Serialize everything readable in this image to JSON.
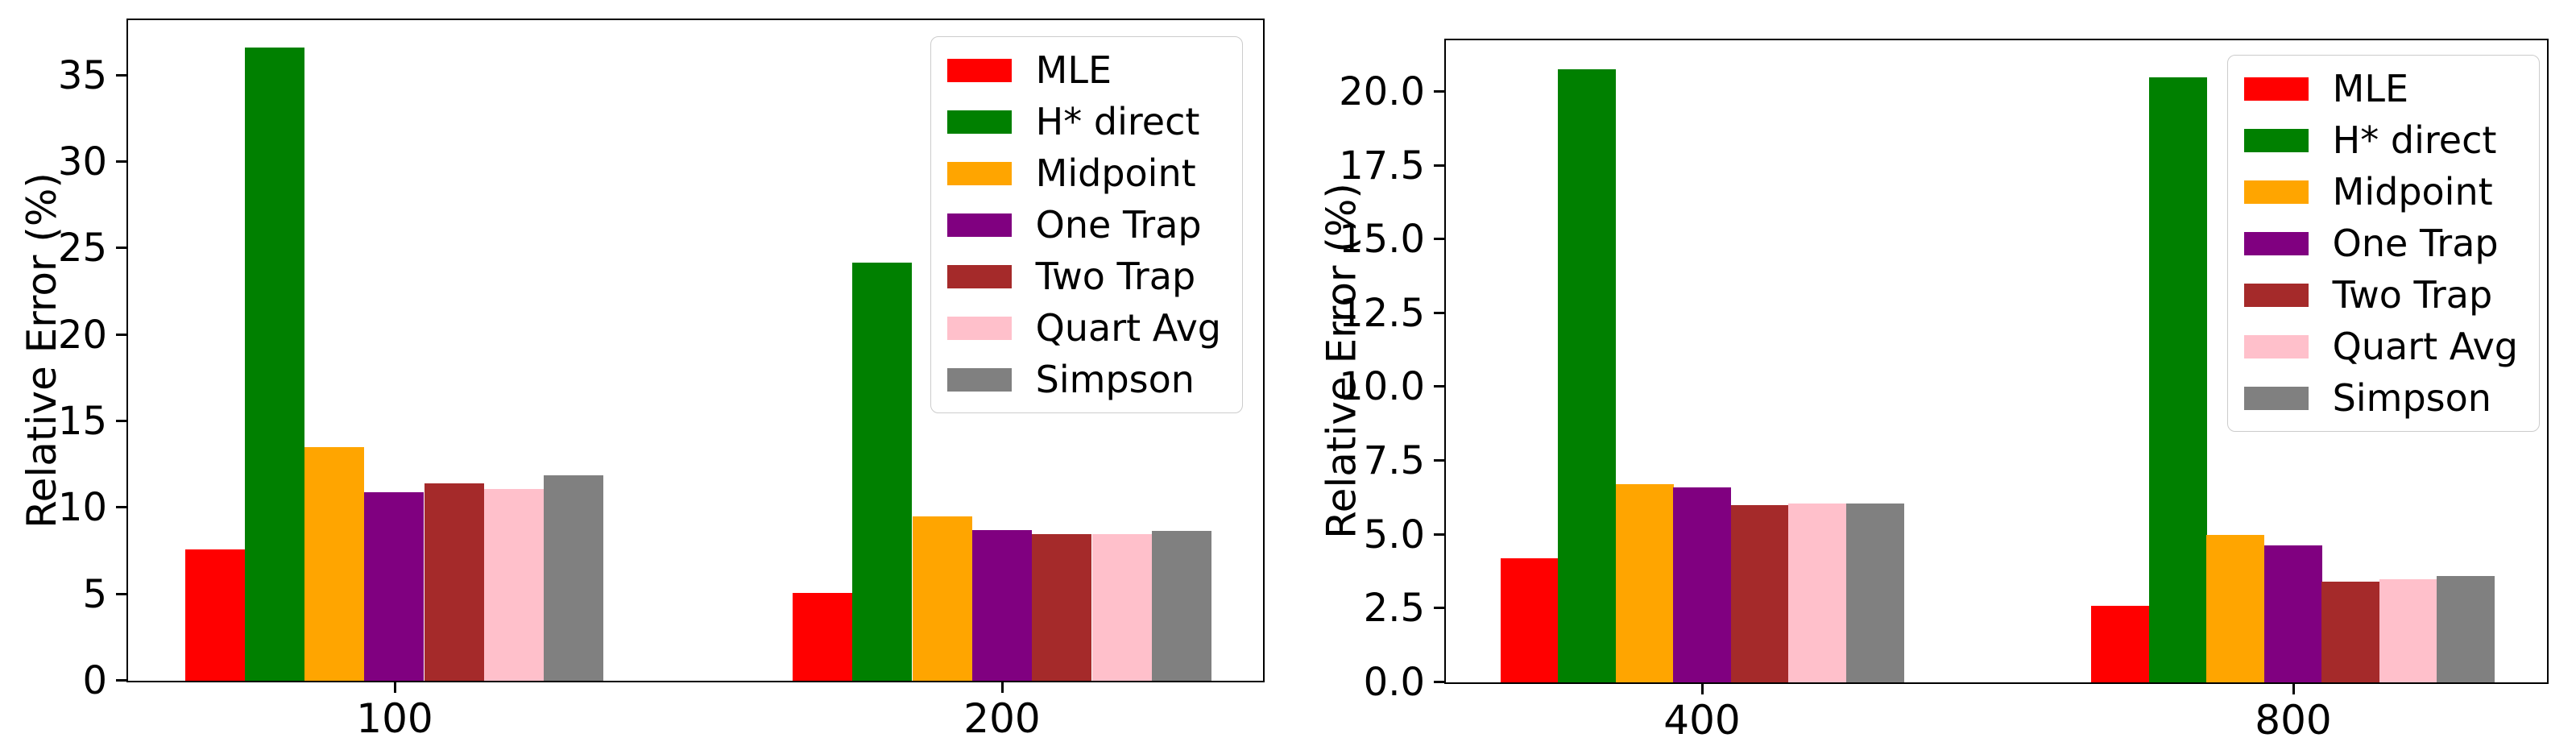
{
  "figure": {
    "background": "#ffffff"
  },
  "chart_data": [
    {
      "type": "bar",
      "title": "",
      "xlabel": "",
      "ylabel": "Relative Error (%)",
      "categories": [
        "100",
        "200"
      ],
      "series": [
        {
          "name": "MLE",
          "color": "#ff0000",
          "values": [
            7.6,
            5.1
          ]
        },
        {
          "name": "H* direct",
          "color": "#008000",
          "values": [
            36.6,
            24.2
          ]
        },
        {
          "name": "Midpoint",
          "color": "#ffa500",
          "values": [
            13.5,
            9.5
          ]
        },
        {
          "name": "One Trap",
          "color": "#800080",
          "values": [
            10.9,
            8.7
          ]
        },
        {
          "name": "Two Trap",
          "color": "#a52a2a",
          "values": [
            11.4,
            8.5
          ]
        },
        {
          "name": "Quart Avg",
          "color": "#ffc0cb",
          "values": [
            11.1,
            8.5
          ]
        },
        {
          "name": "Simpson",
          "color": "#808080",
          "values": [
            11.9,
            8.65
          ]
        }
      ],
      "ylim": [
        0,
        38.3
      ],
      "yticks": [
        0,
        5,
        10,
        15,
        20,
        25,
        30,
        35
      ],
      "ytick_labels": [
        "0",
        "5",
        "10",
        "15",
        "20",
        "25",
        "30",
        "35"
      ],
      "grid": false,
      "legend_position": "upper right"
    },
    {
      "type": "bar",
      "title": "",
      "xlabel": "",
      "ylabel": "Relative Error (%)",
      "categories": [
        "400",
        "800"
      ],
      "series": [
        {
          "name": "MLE",
          "color": "#ff0000",
          "values": [
            4.2,
            2.6
          ]
        },
        {
          "name": "H* direct",
          "color": "#008000",
          "values": [
            20.75,
            20.5
          ]
        },
        {
          "name": "Midpoint",
          "color": "#ffa500",
          "values": [
            6.7,
            5.0
          ]
        },
        {
          "name": "One Trap",
          "color": "#800080",
          "values": [
            6.6,
            4.65
          ]
        },
        {
          "name": "Two Trap",
          "color": "#a52a2a",
          "values": [
            6.0,
            3.4
          ]
        },
        {
          "name": "Quart Avg",
          "color": "#ffc0cb",
          "values": [
            6.05,
            3.5
          ]
        },
        {
          "name": "Simpson",
          "color": "#808080",
          "values": [
            6.05,
            3.6
          ]
        }
      ],
      "ylim": [
        0,
        21.8
      ],
      "yticks": [
        0,
        2.5,
        5,
        7.5,
        10,
        12.5,
        15,
        17.5,
        20
      ],
      "ytick_labels": [
        "0.0",
        "2.5",
        "5.0",
        "7.5",
        "10.0",
        "12.5",
        "15.0",
        "17.5",
        "20.0"
      ],
      "grid": false,
      "legend_position": "upper right"
    }
  ]
}
